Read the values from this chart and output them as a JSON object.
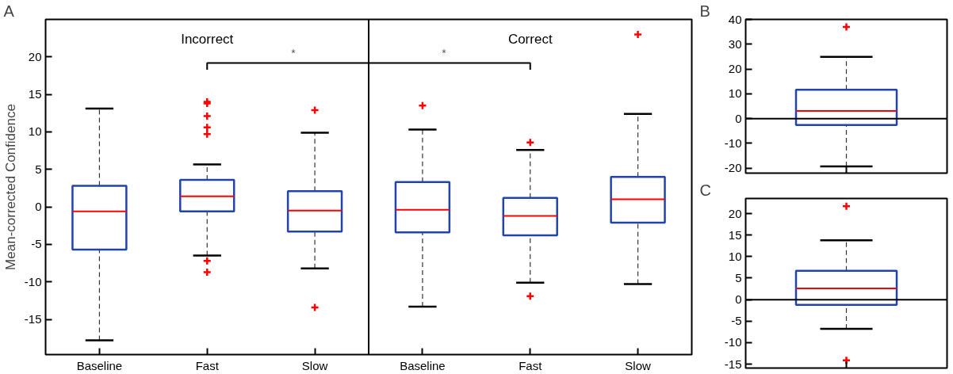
{
  "chart_data": [
    {
      "type": "box",
      "title": "A",
      "ylabel": "Mean-corrected Confidence",
      "categories": [
        "Baseline",
        "Fast",
        "Slow",
        "Baseline",
        "Fast",
        "Slow"
      ],
      "ylim": [
        -19.7,
        25
      ],
      "yticks": [
        -15,
        -10,
        -5,
        0,
        5,
        10,
        15,
        20
      ],
      "grid": false,
      "annotations": [
        "Incorrect",
        "Correct",
        "*",
        "*"
      ],
      "series": [
        {
          "color": "#2244a8",
          "boxes": [
            {
              "low": -17.8,
              "q1": -5.7,
              "median": -0.6,
              "q3": 2.8,
              "high": 13.1
            },
            {
              "low": -6.5,
              "q1": -0.6,
              "median": 1.4,
              "q3": 3.6,
              "high": 5.65,
              "outliers": [
                14.0,
                13.8,
                12.1,
                10.6,
                9.7,
                -7.2,
                -8.7
              ]
            },
            {
              "low": -8.2,
              "q1": -3.3,
              "median": -0.5,
              "q3": 2.1,
              "high": 9.9,
              "outliers": [
                12.9,
                -13.4
              ]
            },
            {
              "low": -13.3,
              "q1": -3.4,
              "median": -0.4,
              "q3": 3.3,
              "high": 10.3,
              "outliers": [
                13.5
              ]
            },
            {
              "low": -10.1,
              "q1": -3.8,
              "median": -1.2,
              "q3": 1.2,
              "high": 7.6,
              "outliers": [
                8.6,
                -11.9
              ]
            },
            {
              "low": -10.3,
              "q1": -2.1,
              "median": 1.0,
              "q3": 4.0,
              "high": 12.4,
              "outliers": [
                23.0
              ]
            }
          ]
        }
      ]
    },
    {
      "type": "box",
      "title": "B",
      "categories": [
        null
      ],
      "ylim": [
        -22,
        40
      ],
      "yticks": [
        -20,
        -10,
        0,
        10,
        20,
        30,
        40
      ],
      "grid": false,
      "ref_lines": [
        {
          "axis": "y",
          "value": 0
        }
      ],
      "series": [
        {
          "color": "#2244a8",
          "boxes": [
            {
              "low": -19.3,
              "q1": -2.6,
              "median": 3.1,
              "q3": 11.6,
              "high": 24.9,
              "outliers": [
                37.0
              ]
            }
          ]
        }
      ]
    },
    {
      "type": "box",
      "title": "C",
      "categories": [
        null
      ],
      "ylim": [
        -15.9,
        23.5
      ],
      "yticks": [
        -15,
        -10,
        -5,
        0,
        5,
        10,
        15,
        20
      ],
      "grid": false,
      "ref_lines": [
        {
          "axis": "y",
          "value": 0
        }
      ],
      "series": [
        {
          "color": "#2244a8",
          "boxes": [
            {
              "low": -6.8,
              "q1": -1.2,
              "median": 2.6,
              "q3": 6.7,
              "high": 13.8,
              "outliers": [
                21.7,
                -14.1
              ]
            }
          ]
        }
      ]
    }
  ]
}
